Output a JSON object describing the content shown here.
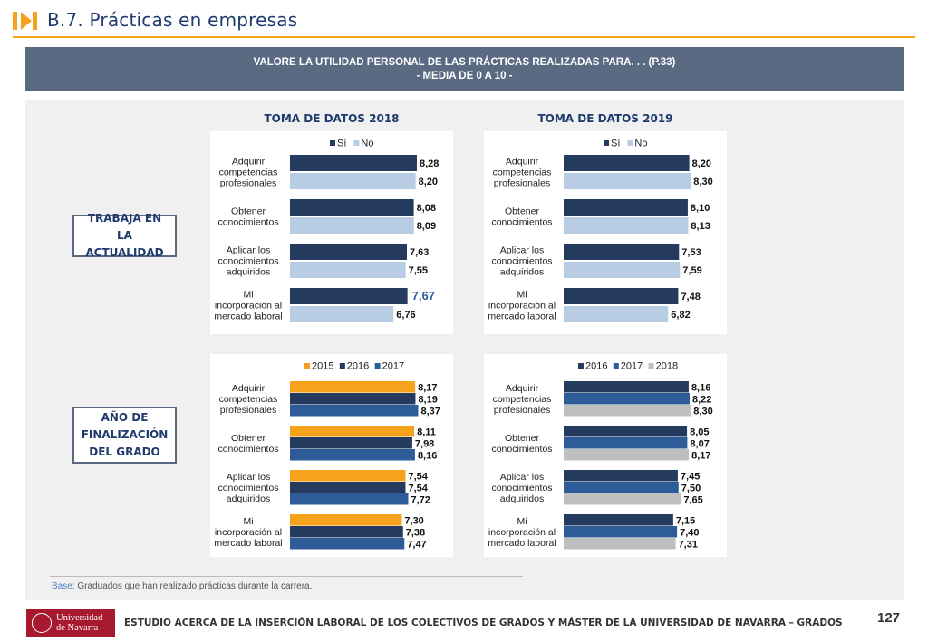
{
  "header": {
    "title": "B.7. Prácticas en empresas"
  },
  "banner": {
    "line1": "VALORE LA UTILIDAD PERSONAL DE LAS PRÁCTICAS REALIZADAS PARA. . . (P.33)",
    "line2": "- MEDIA DE 0 A 10 -"
  },
  "columns": {
    "left": "TOMA DE DATOS 2018",
    "right": "TOMA DE DATOS 2019"
  },
  "rows": {
    "top": "TRABAJA EN LA ACTUALIDAD",
    "bottom": "AÑO DE FINALIZACIÓN DEL GRADO"
  },
  "colors": {
    "si": "#243a5e",
    "no": "#b8cce4",
    "y2015": "#f7a21b",
    "y2016": "#243a5e",
    "y2017": "#2e5c99",
    "y2018": "#bfbfbf"
  },
  "chart_data": [
    {
      "type": "bar",
      "orientation": "horizontal",
      "categories": [
        [
          "Adquirir",
          "competencias",
          "profesionales"
        ],
        [
          "Obtener",
          "conocimientos"
        ],
        [
          "Aplicar los",
          "conocimientos",
          "adquiridos"
        ],
        [
          "Mi",
          "incorporación al",
          "mercado laboral"
        ]
      ],
      "series": [
        {
          "name": "Sí",
          "color": "#243a5e",
          "values": [
            8.28,
            8.08,
            7.63,
            7.67
          ],
          "labels": [
            "8,28",
            "8,08",
            "7,63",
            "7,67"
          ]
        },
        {
          "name": "No",
          "color": "#b8cce4",
          "values": [
            8.2,
            8.09,
            7.55,
            6.76
          ],
          "labels": [
            "8,20",
            "8,09",
            "7,55",
            "6,76"
          ]
        }
      ],
      "xlim": [
        0,
        10
      ],
      "legend": "top"
    },
    {
      "type": "bar",
      "orientation": "horizontal",
      "categories": [
        [
          "Adquirir",
          "competencias",
          "profesionales"
        ],
        [
          "Obtener",
          "conocimientos"
        ],
        [
          "Aplicar los",
          "conocimientos",
          "adquiridos"
        ],
        [
          "Mi",
          "incorporación al",
          "mercado laboral"
        ]
      ],
      "series": [
        {
          "name": "Sí",
          "color": "#243a5e",
          "values": [
            8.2,
            8.1,
            7.53,
            7.48
          ],
          "labels": [
            "8,20",
            "8,10",
            "7,53",
            "7,48"
          ]
        },
        {
          "name": "No",
          "color": "#b8cce4",
          "values": [
            8.3,
            8.13,
            7.59,
            6.82
          ],
          "labels": [
            "8,30",
            "8,13",
            "7,59",
            "6,82"
          ]
        }
      ],
      "xlim": [
        0,
        10
      ],
      "legend": "top"
    },
    {
      "type": "bar",
      "orientation": "horizontal",
      "categories": [
        [
          "Adquirir",
          "competencias",
          "profesionales"
        ],
        [
          "Obtener",
          "conocimientos"
        ],
        [
          "Aplicar los",
          "conocimientos",
          "adquiridos"
        ],
        [
          "Mi",
          "incorporación al",
          "mercado laboral"
        ]
      ],
      "series": [
        {
          "name": "2015",
          "color": "#f7a21b",
          "values": [
            8.17,
            8.11,
            7.54,
            7.3
          ],
          "labels": [
            "8,17",
            "8,11",
            "7,54",
            "7,30"
          ]
        },
        {
          "name": "2016",
          "color": "#243a5e",
          "values": [
            8.19,
            7.98,
            7.54,
            7.38
          ],
          "labels": [
            "8,19",
            "7,98",
            "7,54",
            "7,38"
          ]
        },
        {
          "name": "2017",
          "color": "#2e5c99",
          "values": [
            8.37,
            8.16,
            7.72,
            7.47
          ],
          "labels": [
            "8,37",
            "8,16",
            "7,72",
            "7,47"
          ]
        }
      ],
      "xlim": [
        0,
        10
      ],
      "legend": "top"
    },
    {
      "type": "bar",
      "orientation": "horizontal",
      "categories": [
        [
          "Adquirir",
          "competencias",
          "profesionales"
        ],
        [
          "Obtener",
          "conocimientos"
        ],
        [
          "Aplicar los",
          "conocimientos",
          "adquiridos"
        ],
        [
          "Mi",
          "incorporación al",
          "mercado laboral"
        ]
      ],
      "series": [
        {
          "name": "2016",
          "color": "#243a5e",
          "values": [
            8.16,
            8.05,
            7.45,
            7.15
          ],
          "labels": [
            "8,16",
            "8,05",
            "7,45",
            "7,15"
          ]
        },
        {
          "name": "2017",
          "color": "#2e5c99",
          "values": [
            8.22,
            8.07,
            7.5,
            7.4
          ],
          "labels": [
            "8,22",
            "8,07",
            "7,50",
            "7,40"
          ]
        },
        {
          "name": "2018",
          "color": "#bfbfbf",
          "values": [
            8.3,
            8.17,
            7.65,
            7.31
          ],
          "labels": [
            "8,30",
            "8,17",
            "7,65",
            "7,31"
          ]
        }
      ],
      "xlim": [
        0,
        10
      ],
      "legend": "top"
    }
  ],
  "base": {
    "label": "Base:",
    "text": " Graduados que han realizado prácticas durante la carrera."
  },
  "footer": {
    "logo_line1": "Universidad",
    "logo_line2": "de Navarra",
    "text": "ESTUDIO ACERCA DE LA INSERCIÓN LABORAL DE LOS COLECTIVOS DE GRADOS Y MÁSTER DE LA UNIVERSIDAD DE NAVARRA – GRADOS",
    "page": "127"
  }
}
